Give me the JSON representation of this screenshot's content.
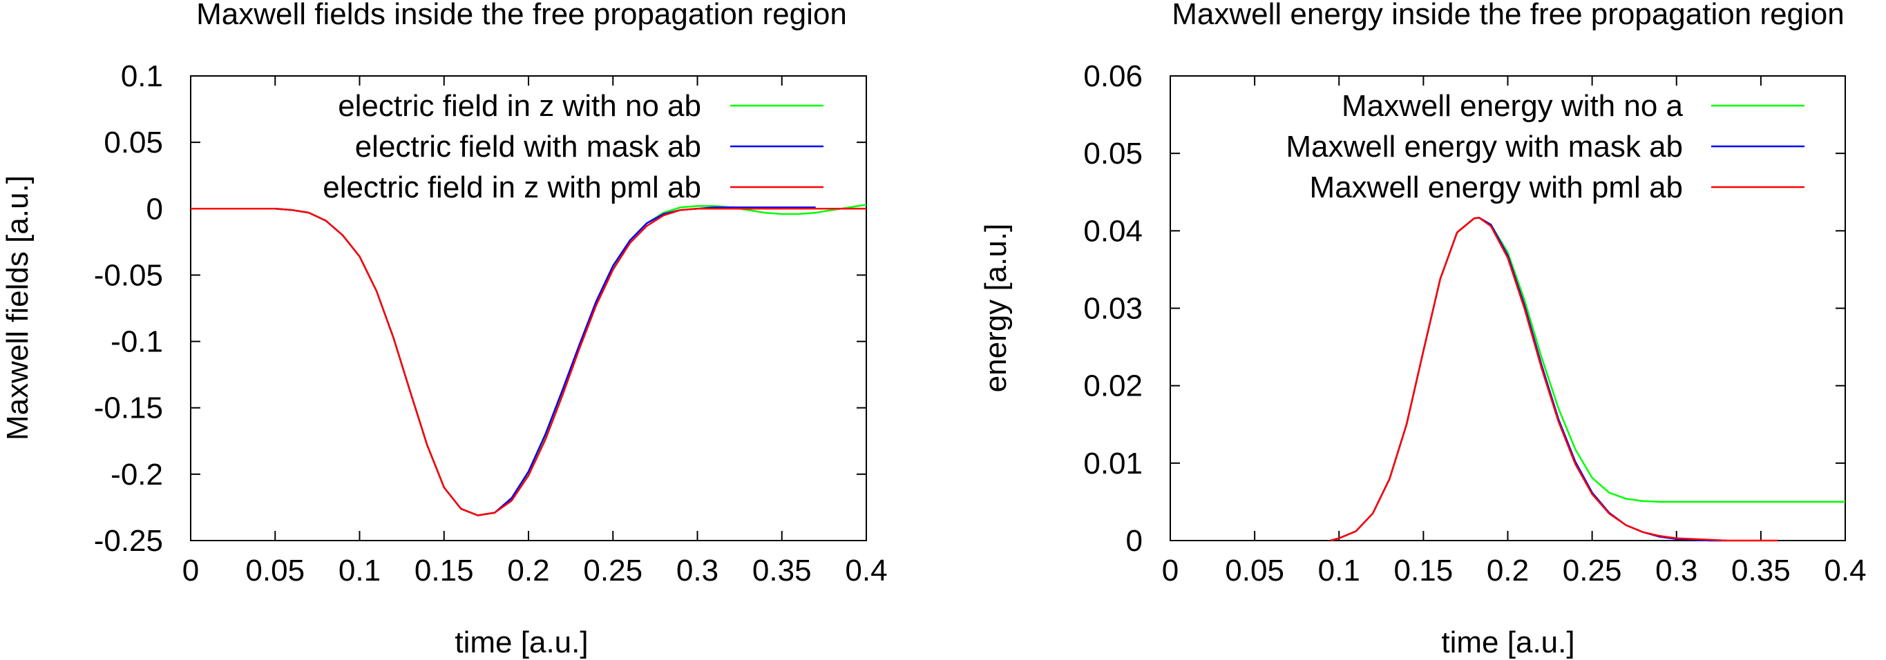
{
  "chart_data": [
    {
      "type": "line",
      "title": "Maxwell fields inside the free propagation region",
      "xlabel": "time [a.u.]",
      "ylabel": "Maxwell fields [a.u.]",
      "xlim": [
        0,
        0.4
      ],
      "ylim": [
        -0.25,
        0.1
      ],
      "xticks": [
        0,
        0.05,
        0.1,
        0.15,
        0.2,
        0.25,
        0.3,
        0.35,
        0.4
      ],
      "xtick_labels": [
        "0",
        "0.05",
        "0.1",
        "0.15",
        "0.2",
        "0.25",
        "0.3",
        "0.35",
        "0.4"
      ],
      "yticks": [
        -0.25,
        -0.2,
        -0.15,
        -0.1,
        -0.05,
        0,
        0.05,
        0.1
      ],
      "ytick_labels": [
        "-0.25",
        "-0.2",
        "-0.15",
        "-0.1",
        "-0.05",
        "0",
        "0.05",
        "0.1"
      ],
      "legend_position": "top-right",
      "grid": false,
      "series": [
        {
          "name": "electric field in z with no ab",
          "color": "#00ff00",
          "x": [
            0,
            0.05,
            0.06,
            0.07,
            0.08,
            0.09,
            0.1,
            0.11,
            0.12,
            0.13,
            0.14,
            0.15,
            0.16,
            0.17,
            0.18,
            0.19,
            0.2,
            0.21,
            0.22,
            0.23,
            0.24,
            0.25,
            0.26,
            0.27,
            0.28,
            0.29,
            0.3,
            0.31,
            0.32,
            0.33,
            0.34,
            0.35,
            0.36,
            0.37,
            0.38,
            0.39,
            0.4
          ],
          "y": [
            0,
            0,
            -0.001,
            -0.003,
            -0.009,
            -0.02,
            -0.036,
            -0.062,
            -0.097,
            -0.138,
            -0.178,
            -0.21,
            -0.226,
            -0.231,
            -0.229,
            -0.219,
            -0.2,
            -0.172,
            -0.139,
            -0.104,
            -0.071,
            -0.044,
            -0.024,
            -0.011,
            -0.003,
            0.001,
            0.002,
            0.002,
            0.001,
            -0.001,
            -0.003,
            -0.004,
            -0.004,
            -0.003,
            -0.001,
            0.001,
            0.003
          ]
        },
        {
          "name": "electric field with mask ab",
          "color": "#0000ff",
          "x": [
            0,
            0.05,
            0.06,
            0.07,
            0.08,
            0.09,
            0.1,
            0.11,
            0.12,
            0.13,
            0.14,
            0.15,
            0.16,
            0.17,
            0.18,
            0.19,
            0.2,
            0.21,
            0.22,
            0.23,
            0.24,
            0.25,
            0.26,
            0.27,
            0.28,
            0.29,
            0.3,
            0.31,
            0.32,
            0.33,
            0.34,
            0.35,
            0.36,
            0.37
          ],
          "y": [
            0,
            0,
            -0.001,
            -0.003,
            -0.009,
            -0.02,
            -0.036,
            -0.062,
            -0.097,
            -0.138,
            -0.178,
            -0.21,
            -0.226,
            -0.231,
            -0.229,
            -0.218,
            -0.198,
            -0.17,
            -0.137,
            -0.103,
            -0.07,
            -0.043,
            -0.024,
            -0.011,
            -0.004,
            -0.001,
            0,
            0.001,
            0.001,
            0.001,
            0.001,
            0.001,
            0.001,
            0.001
          ]
        },
        {
          "name": "electric field in z with pml ab",
          "color": "#ff0000",
          "x": [
            0,
            0.05,
            0.06,
            0.07,
            0.08,
            0.09,
            0.1,
            0.11,
            0.12,
            0.13,
            0.14,
            0.15,
            0.16,
            0.17,
            0.18,
            0.19,
            0.2,
            0.21,
            0.22,
            0.23,
            0.24,
            0.25,
            0.26,
            0.27,
            0.28,
            0.29,
            0.3,
            0.31,
            0.32,
            0.33,
            0.34,
            0.35,
            0.36,
            0.37,
            0.38,
            0.39,
            0.4
          ],
          "y": [
            0,
            0,
            -0.001,
            -0.003,
            -0.009,
            -0.02,
            -0.036,
            -0.062,
            -0.097,
            -0.138,
            -0.178,
            -0.21,
            -0.226,
            -0.231,
            -0.229,
            -0.22,
            -0.201,
            -0.174,
            -0.141,
            -0.106,
            -0.073,
            -0.046,
            -0.026,
            -0.013,
            -0.005,
            -0.001,
            0,
            0,
            0,
            0,
            0,
            0,
            0,
            0,
            0,
            0,
            0
          ]
        }
      ]
    },
    {
      "type": "line",
      "title": "Maxwell energy inside the free propagation region",
      "xlabel": "time [a.u.]",
      "ylabel": "energy [a.u.]",
      "xlim": [
        0,
        0.4
      ],
      "ylim": [
        0,
        0.06
      ],
      "xticks": [
        0,
        0.05,
        0.1,
        0.15,
        0.2,
        0.25,
        0.3,
        0.35,
        0.4
      ],
      "xtick_labels": [
        "0",
        "0.05",
        "0.1",
        "0.15",
        "0.2",
        "0.25",
        "0.3",
        "0.35",
        "0.4"
      ],
      "yticks": [
        0,
        0.01,
        0.02,
        0.03,
        0.04,
        0.05,
        0.06
      ],
      "ytick_labels": [
        "0",
        "0.01",
        "0.02",
        "0.03",
        "0.04",
        "0.05",
        "0.06"
      ],
      "legend_position": "top-right",
      "grid": false,
      "series": [
        {
          "name": "Maxwell energy with no a",
          "color": "#00ff00",
          "x": [
            0.095,
            0.1,
            0.11,
            0.12,
            0.13,
            0.14,
            0.15,
            0.16,
            0.17,
            0.18,
            0.183,
            0.19,
            0.2,
            0.21,
            0.22,
            0.23,
            0.24,
            0.25,
            0.26,
            0.27,
            0.28,
            0.29,
            0.3,
            0.32,
            0.35,
            0.4
          ],
          "y": [
            0,
            0.0003,
            0.0012,
            0.0035,
            0.008,
            0.015,
            0.0245,
            0.0338,
            0.0398,
            0.0416,
            0.0417,
            0.0408,
            0.0372,
            0.031,
            0.0237,
            0.0171,
            0.0118,
            0.0081,
            0.0062,
            0.0054,
            0.0051,
            0.005,
            0.005,
            0.005,
            0.005,
            0.005
          ]
        },
        {
          "name": "Maxwell energy with mask ab",
          "color": "#0000ff",
          "x": [
            0.095,
            0.1,
            0.11,
            0.12,
            0.13,
            0.14,
            0.15,
            0.16,
            0.17,
            0.18,
            0.183,
            0.19,
            0.2,
            0.21,
            0.22,
            0.23,
            0.24,
            0.25,
            0.26,
            0.27,
            0.28,
            0.29,
            0.3,
            0.31,
            0.32,
            0.33
          ],
          "y": [
            0,
            0.0003,
            0.0012,
            0.0035,
            0.008,
            0.015,
            0.0245,
            0.0338,
            0.0398,
            0.0416,
            0.0417,
            0.0408,
            0.0368,
            0.0303,
            0.0227,
            0.0157,
            0.0102,
            0.0062,
            0.0036,
            0.002,
            0.0011,
            0.0005,
            0.0002,
            0.0001,
            0,
            0
          ]
        },
        {
          "name": "Maxwell energy with pml ab",
          "color": "#ff0000",
          "x": [
            0.095,
            0.1,
            0.11,
            0.12,
            0.13,
            0.14,
            0.15,
            0.16,
            0.17,
            0.18,
            0.183,
            0.19,
            0.2,
            0.21,
            0.22,
            0.23,
            0.24,
            0.25,
            0.26,
            0.27,
            0.28,
            0.29,
            0.3,
            0.31,
            0.32,
            0.33,
            0.34,
            0.35,
            0.36
          ],
          "y": [
            0,
            0.0003,
            0.0012,
            0.0035,
            0.008,
            0.015,
            0.0245,
            0.0338,
            0.0398,
            0.0416,
            0.0417,
            0.0406,
            0.0365,
            0.0299,
            0.0223,
            0.0154,
            0.0099,
            0.006,
            0.0035,
            0.002,
            0.0011,
            0.0006,
            0.0003,
            0.0002,
            0.0001,
            0,
            0,
            0,
            0
          ]
        }
      ]
    }
  ]
}
